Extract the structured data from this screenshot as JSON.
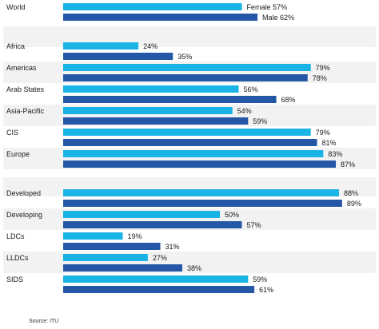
{
  "chart_data": {
    "type": "bar",
    "orientation": "horizontal",
    "categories": [
      "World",
      "Africa",
      "Americas",
      "Arab States",
      "Asia-Pacific",
      "CIS",
      "Europe",
      "Developed",
      "Developing",
      "LDCs",
      "LLDCs",
      "SIDS"
    ],
    "groups": [
      [
        "World"
      ],
      [
        "Africa",
        "Americas",
        "Arab States",
        "Asia-Pacific",
        "CIS",
        "Europe"
      ],
      [
        "Developed",
        "Developing",
        "LDCs",
        "LLDCs",
        "SIDS"
      ]
    ],
    "series": [
      {
        "name": "Female",
        "values": [
          57,
          24,
          79,
          56,
          54,
          79,
          83,
          88,
          50,
          19,
          27,
          59
        ]
      },
      {
        "name": "Male",
        "values": [
          62,
          35,
          78,
          68,
          59,
          81,
          87,
          89,
          57,
          31,
          38,
          61
        ]
      }
    ],
    "value_suffix": "%",
    "xlim": [
      0,
      100
    ],
    "grid": false,
    "source": "Source: ITU",
    "colors": {
      "female": "#1ab3e6",
      "male": "#2457a6",
      "band": "#f2f2f2",
      "text": "#1a1a1a"
    }
  }
}
